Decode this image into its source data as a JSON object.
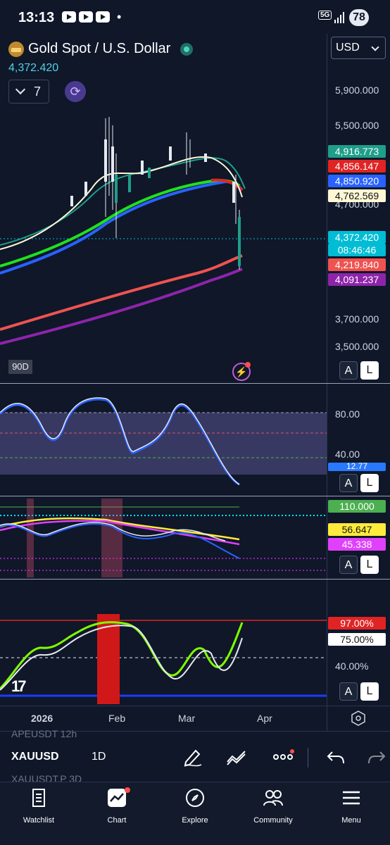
{
  "status_bar": {
    "time": "13:13",
    "network": "5G",
    "battery": "78"
  },
  "header": {
    "symbol_title": "Gold Spot / U.S. Dollar",
    "last_price": "4,372.420",
    "interval": "7",
    "currency": "USD"
  },
  "price_axis": {
    "ticks": [
      "5,900.000",
      "5,500.000",
      "4,700.000",
      "3,700.000",
      "3,500.000"
    ],
    "tags": [
      {
        "value": "4,916.773",
        "bg": "#1f9e89",
        "fg": "#ffffff"
      },
      {
        "value": "4,856.147",
        "bg": "#e02424",
        "fg": "#ffffff"
      },
      {
        "value": "4,850.920",
        "bg": "#2962ff",
        "fg": "#ffffff"
      },
      {
        "value": "4,762.569",
        "bg": "#fff8d6",
        "fg": "#111111"
      },
      {
        "value": "4,372.420",
        "bg": "#00bcd4",
        "fg": "#ffffff"
      },
      {
        "value": "08:46:46",
        "bg": "#00bcd4",
        "fg": "#ffffff"
      },
      {
        "value": "4,219.840",
        "bg": "#ef5350",
        "fg": "#ffffff"
      },
      {
        "value": "4,091.237",
        "bg": "#8e24aa",
        "fg": "#ffffff"
      }
    ]
  },
  "range_badge": "90D",
  "osc1_axis": {
    "ticks": [
      "80.00",
      "40.00"
    ],
    "tag": "12.77"
  },
  "osc2_axis": {
    "tags": [
      {
        "value": "110.000",
        "bg": "#4caf50",
        "fg": "#ffffff"
      },
      {
        "value": "56.647",
        "bg": "#ffeb3b",
        "fg": "#111111"
      },
      {
        "value": "45.338",
        "bg": "#e040fb",
        "fg": "#ffffff"
      }
    ]
  },
  "osc3_axis": {
    "tags": [
      {
        "value": "97.00%",
        "bg": "#e02424",
        "fg": "#ffffff"
      },
      {
        "value": "75.00%",
        "bg": "#ffffff",
        "fg": "#111111"
      }
    ],
    "tick": "40.00%"
  },
  "pane_buttons": {
    "auto": "A",
    "log": "L"
  },
  "time_axis": [
    "2026",
    "Feb",
    "Mar",
    "Apr"
  ],
  "symbol_bar": {
    "prev_row": "APEUSDT     12h",
    "symbol": "XAUUSD",
    "interval": "1D",
    "next_row": "XAUUSDT.P     3D"
  },
  "tabs": [
    {
      "label": "Watchlist",
      "icon": "watchlist-icon"
    },
    {
      "label": "Chart",
      "icon": "chart-icon"
    },
    {
      "label": "Explore",
      "icon": "compass-icon"
    },
    {
      "label": "Community",
      "icon": "community-icon"
    },
    {
      "label": "Menu",
      "icon": "menu-icon"
    }
  ]
}
